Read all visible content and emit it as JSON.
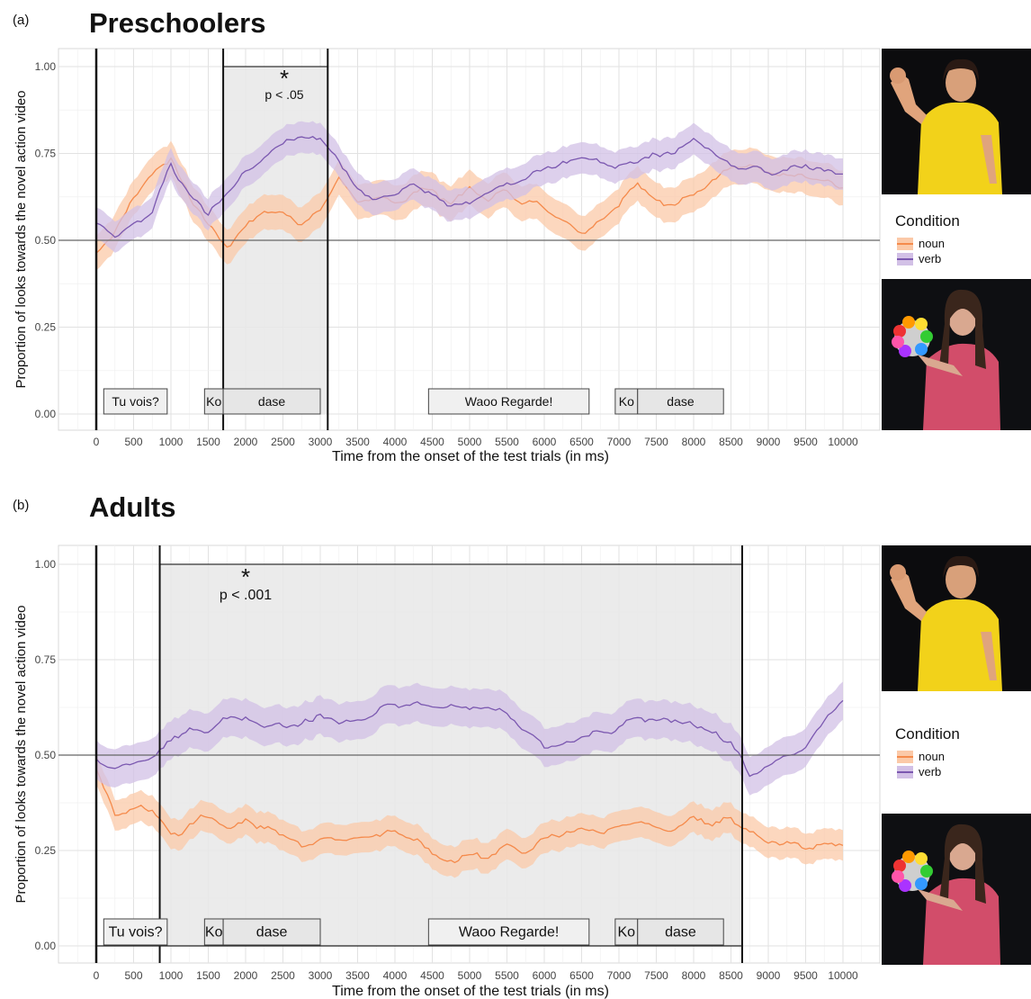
{
  "colors": {
    "noun": "#f58a4b",
    "verb": "#7b58b0",
    "noun_band": "#fbc9a8",
    "verb_band": "#d2c0e6"
  },
  "icons": [
    "woman-flexing-arm-photo",
    "woman-holding-toy-photo"
  ],
  "panels": [
    {
      "letter": "(a)",
      "title": "Preschoolers",
      "significance": {
        "star": "*",
        "p": "p < .05"
      },
      "speech_labels": [
        "Tu vois?",
        "Ko",
        "dase",
        "Waoo Regarde!",
        "Ko",
        "dase"
      ],
      "legend": {
        "title": "Condition",
        "noun": "noun",
        "verb": "verb"
      },
      "chart_data": {
        "type": "line",
        "xlabel": "Time from the onset of the test trials (in ms)",
        "ylabel": "Proportion of looks towards the novel action video",
        "xlim": [
          -500,
          10300
        ],
        "ylim": [
          -0.05,
          1.05
        ],
        "xticks": [
          "0",
          "500",
          "1000",
          "1500",
          "2000",
          "2500",
          "3000",
          "3500",
          "4000",
          "4500",
          "5000",
          "5500",
          "6000",
          "6500",
          "7000",
          "7500",
          "8000",
          "8500",
          "9000",
          "9500",
          "10000"
        ],
        "yticks": [
          "0.00",
          "0.25",
          "0.50",
          "0.75",
          "1.00"
        ],
        "reference_line": 0.5,
        "significant_window": [
          1700,
          3100
        ],
        "grid": true,
        "series": [
          {
            "name": "noun",
            "x": [
              0,
              250,
              500,
              750,
              1000,
              1250,
              1500,
              1750,
              2000,
              2250,
              2500,
              2750,
              3000,
              3250,
              3500,
              3750,
              4000,
              4250,
              4500,
              4750,
              5000,
              5250,
              5500,
              5750,
              6000,
              6250,
              6500,
              6750,
              7000,
              7250,
              7500,
              7750,
              8000,
              8250,
              8500,
              8750,
              9000,
              9250,
              9500,
              9750,
              10000
            ],
            "y": [
              0.47,
              0.53,
              0.62,
              0.7,
              0.74,
              0.62,
              0.55,
              0.48,
              0.55,
              0.58,
              0.58,
              0.56,
              0.58,
              0.68,
              0.62,
              0.6,
              0.61,
              0.64,
              0.65,
              0.6,
              0.65,
              0.62,
              0.64,
              0.62,
              0.6,
              0.57,
              0.53,
              0.57,
              0.6,
              0.66,
              0.63,
              0.61,
              0.63,
              0.66,
              0.7,
              0.7,
              0.69,
              0.68,
              0.68,
              0.67,
              0.66
            ],
            "band": 0.05
          },
          {
            "name": "verb",
            "x": [
              0,
              250,
              500,
              750,
              1000,
              1250,
              1500,
              1750,
              2000,
              2250,
              2500,
              2750,
              3000,
              3250,
              3500,
              3750,
              4000,
              4250,
              4500,
              4750,
              5000,
              5250,
              5500,
              5750,
              6000,
              6250,
              6500,
              6750,
              7000,
              7250,
              7500,
              7750,
              8000,
              8250,
              8500,
              8750,
              9000,
              9250,
              9500,
              9750,
              10000
            ],
            "y": [
              0.54,
              0.5,
              0.55,
              0.58,
              0.72,
              0.63,
              0.57,
              0.64,
              0.7,
              0.74,
              0.77,
              0.8,
              0.79,
              0.72,
              0.66,
              0.63,
              0.63,
              0.66,
              0.64,
              0.62,
              0.61,
              0.64,
              0.67,
              0.68,
              0.71,
              0.72,
              0.74,
              0.73,
              0.72,
              0.73,
              0.74,
              0.76,
              0.78,
              0.75,
              0.72,
              0.72,
              0.7,
              0.71,
              0.72,
              0.71,
              0.7
            ],
            "band": 0.045
          }
        ]
      }
    },
    {
      "letter": "(b)",
      "title": "Adults",
      "significance": {
        "star": "*",
        "p": "p < .001"
      },
      "speech_labels": [
        "Tu vois?",
        "Ko",
        "dase",
        "Waoo Regarde!",
        "Ko",
        "dase"
      ],
      "legend": {
        "title": "Condition",
        "noun": "noun",
        "verb": "verb"
      },
      "chart_data": {
        "type": "line",
        "xlabel": "Time from the onset of the test trials (in ms)",
        "ylabel": "Proportion of looks towards the novel action video",
        "xlim": [
          -500,
          10300
        ],
        "ylim": [
          -0.05,
          1.05
        ],
        "xticks": [
          "0",
          "500",
          "1000",
          "1500",
          "2000",
          "2500",
          "3000",
          "3500",
          "4000",
          "4500",
          "5000",
          "5500",
          "6000",
          "6500",
          "7000",
          "7500",
          "8000",
          "8500",
          "9000",
          "9500",
          "10000"
        ],
        "yticks": [
          "0.00",
          "0.25",
          "0.50",
          "0.75",
          "1.00"
        ],
        "reference_line": 0.5,
        "significant_window": [
          850,
          8650
        ],
        "grid": true,
        "series": [
          {
            "name": "noun",
            "x": [
              0,
              250,
              500,
              750,
              1000,
              1250,
              1500,
              1750,
              2000,
              2250,
              2500,
              2750,
              3000,
              3250,
              3500,
              3750,
              4000,
              4250,
              4500,
              4750,
              5000,
              5250,
              5500,
              5750,
              6000,
              6250,
              6500,
              6750,
              7000,
              7250,
              7500,
              7750,
              8000,
              8250,
              8500,
              8750,
              9000,
              9250,
              9500,
              9750,
              10000
            ],
            "y": [
              0.45,
              0.35,
              0.36,
              0.36,
              0.3,
              0.32,
              0.33,
              0.31,
              0.33,
              0.31,
              0.3,
              0.27,
              0.27,
              0.28,
              0.27,
              0.29,
              0.3,
              0.27,
              0.24,
              0.23,
              0.24,
              0.23,
              0.25,
              0.26,
              0.29,
              0.3,
              0.32,
              0.3,
              0.32,
              0.34,
              0.32,
              0.3,
              0.33,
              0.32,
              0.33,
              0.3,
              0.27,
              0.27,
              0.26,
              0.27,
              0.26
            ],
            "band": 0.04
          },
          {
            "name": "verb",
            "x": [
              0,
              250,
              500,
              750,
              1000,
              1250,
              1500,
              1750,
              2000,
              2250,
              2500,
              2750,
              3000,
              3250,
              3500,
              3750,
              4000,
              4250,
              4500,
              4750,
              5000,
              5250,
              5500,
              5750,
              6000,
              6250,
              6500,
              6750,
              7000,
              7250,
              7500,
              7750,
              8000,
              8250,
              8500,
              8750,
              9000,
              9250,
              9500,
              9750,
              10000
            ],
            "y": [
              0.48,
              0.46,
              0.47,
              0.5,
              0.54,
              0.56,
              0.57,
              0.59,
              0.6,
              0.58,
              0.59,
              0.58,
              0.6,
              0.59,
              0.58,
              0.62,
              0.64,
              0.65,
              0.63,
              0.64,
              0.63,
              0.62,
              0.6,
              0.56,
              0.51,
              0.53,
              0.54,
              0.56,
              0.57,
              0.59,
              0.59,
              0.6,
              0.58,
              0.56,
              0.53,
              0.45,
              0.46,
              0.5,
              0.53,
              0.58,
              0.64
            ],
            "band": 0.05
          }
        ]
      }
    }
  ]
}
